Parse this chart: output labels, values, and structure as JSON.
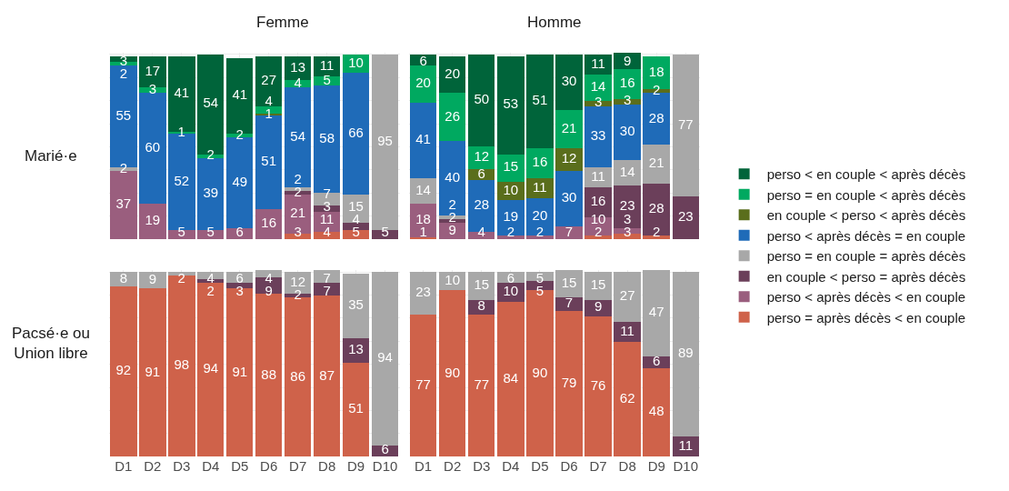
{
  "chart_data": [
    {
      "type": "bar",
      "stacked": true,
      "title": "Femme",
      "ylabel": "Marié·e",
      "categories": [
        "D1",
        "D2",
        "D3",
        "D4",
        "D5",
        "D6",
        "D7",
        "D8",
        "D9",
        "D10"
      ],
      "ylim": [
        0,
        101
      ],
      "data_labels": true,
      "grid": true,
      "tick_labels": false,
      "legend": "right",
      "series": [
        {
          "name": "perso = après décès < en couple",
          "color": "#cf624a",
          "values": [
            null,
            null,
            null,
            null,
            null,
            null,
            3,
            4,
            5,
            null
          ]
        },
        {
          "name": "perso < après décès < en couple",
          "color": "#9a5e7e",
          "values": [
            37,
            19,
            5,
            5,
            6,
            16,
            21,
            11,
            null,
            null
          ]
        },
        {
          "name": "en couple < perso = après décès",
          "color": "#6b3f5a",
          "values": [
            null,
            null,
            null,
            null,
            null,
            null,
            2,
            3,
            4,
            5
          ]
        },
        {
          "name": "perso = en couple = après décès",
          "color": "#a8a8a8",
          "values": [
            2,
            null,
            null,
            null,
            null,
            null,
            2,
            7,
            15,
            95
          ]
        },
        {
          "name": "perso < après décès = en couple",
          "color": "#1f6bb8",
          "values": [
            55,
            60,
            52,
            39,
            49,
            51,
            54,
            58,
            66,
            null
          ]
        },
        {
          "name": "en couple < perso < après décès",
          "color": "#5a6e1c",
          "values": [
            null,
            null,
            null,
            null,
            null,
            1,
            null,
            null,
            null,
            null
          ]
        },
        {
          "name": "perso = en couple < après décès",
          "color": "#00a960",
          "values": [
            2,
            3,
            1,
            2,
            2,
            4,
            4,
            5,
            10,
            null
          ]
        },
        {
          "name": "perso < en couple < après décès",
          "color": "#00643a",
          "values": [
            3,
            17,
            41,
            54,
            41,
            27,
            13,
            11,
            null,
            null
          ]
        }
      ]
    },
    {
      "type": "bar",
      "stacked": true,
      "title": "Homme",
      "categories": [
        "D1",
        "D2",
        "D3",
        "D4",
        "D5",
        "D6",
        "D7",
        "D8",
        "D9",
        "D10"
      ],
      "ylim": [
        0,
        101
      ],
      "data_labels": true,
      "grid": true,
      "tick_labels": false,
      "series": [
        {
          "name": "perso = après décès < en couple",
          "color": "#cf624a",
          "values": [
            1,
            null,
            null,
            null,
            null,
            null,
            2,
            3,
            2,
            null
          ]
        },
        {
          "name": "perso < après décès < en couple",
          "color": "#9a5e7e",
          "values": [
            18,
            9,
            4,
            2,
            2,
            7,
            10,
            3,
            null,
            null
          ]
        },
        {
          "name": "en couple < perso = après décès",
          "color": "#6b3f5a",
          "values": [
            null,
            2,
            null,
            null,
            null,
            null,
            16,
            23,
            28,
            23
          ]
        },
        {
          "name": "perso = en couple = après décès",
          "color": "#a8a8a8",
          "values": [
            14,
            2,
            null,
            null,
            null,
            null,
            11,
            14,
            21,
            77
          ]
        },
        {
          "name": "perso < après décès = en couple",
          "color": "#1f6bb8",
          "values": [
            41,
            40,
            28,
            19,
            20,
            30,
            33,
            30,
            28,
            null
          ]
        },
        {
          "name": "en couple < perso < après décès",
          "color": "#5a6e1c",
          "values": [
            null,
            null,
            6,
            10,
            11,
            12,
            3,
            3,
            2,
            null
          ]
        },
        {
          "name": "perso = en couple < après décès",
          "color": "#00a960",
          "values": [
            20,
            26,
            12,
            15,
            16,
            21,
            14,
            16,
            18,
            null
          ]
        },
        {
          "name": "perso < en couple < après décès",
          "color": "#00643a",
          "values": [
            6,
            20,
            50,
            53,
            51,
            30,
            11,
            9,
            null,
            null
          ]
        }
      ]
    },
    {
      "type": "bar",
      "stacked": true,
      "ylabel": "Pacsé·e ou Union libre",
      "categories": [
        "D1",
        "D2",
        "D3",
        "D4",
        "D5",
        "D6",
        "D7",
        "D8",
        "D9",
        "D10"
      ],
      "ylim": [
        0,
        101
      ],
      "data_labels": true,
      "grid": true,
      "tick_labels": "x",
      "series": [
        {
          "name": "perso = après décès < en couple",
          "color": "#cf624a",
          "values": [
            92,
            91,
            98,
            94,
            91,
            88,
            86,
            87,
            51,
            null
          ]
        },
        {
          "name": "en couple < perso = après décès",
          "color": "#6b3f5a",
          "values": [
            null,
            null,
            null,
            2,
            3,
            9,
            2,
            7,
            13,
            6
          ]
        },
        {
          "name": "perso = en couple = après décès",
          "color": "#a8a8a8",
          "values": [
            8,
            9,
            2,
            4,
            6,
            4,
            12,
            7,
            35,
            94
          ]
        }
      ]
    },
    {
      "type": "bar",
      "stacked": true,
      "categories": [
        "D1",
        "D2",
        "D3",
        "D4",
        "D5",
        "D6",
        "D7",
        "D8",
        "D9",
        "D10"
      ],
      "ylim": [
        0,
        101
      ],
      "data_labels": true,
      "grid": true,
      "tick_labels": "x",
      "series": [
        {
          "name": "perso = après décès < en couple",
          "color": "#cf624a",
          "values": [
            77,
            90,
            77,
            84,
            90,
            79,
            76,
            62,
            48,
            null
          ]
        },
        {
          "name": "en couple < perso = après décès",
          "color": "#6b3f5a",
          "values": [
            null,
            null,
            8,
            10,
            5,
            7,
            9,
            11,
            6,
            11
          ]
        },
        {
          "name": "perso = en couple = après décès",
          "color": "#a8a8a8",
          "values": [
            23,
            10,
            15,
            6,
            5,
            15,
            15,
            27,
            47,
            89
          ]
        }
      ]
    }
  ]
}
